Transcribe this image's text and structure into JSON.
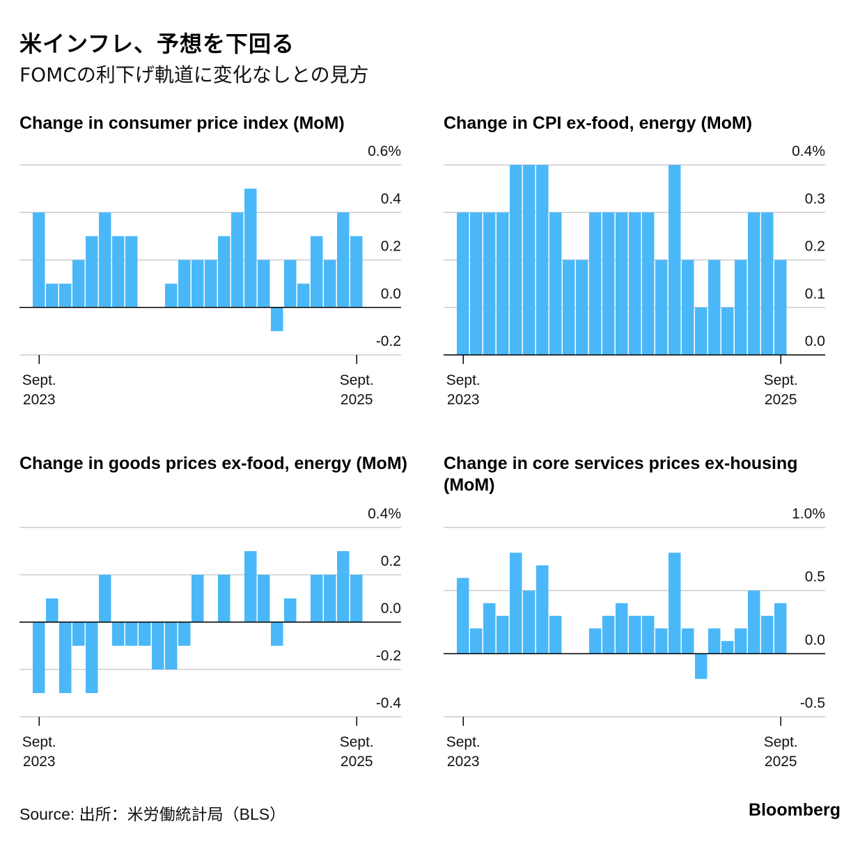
{
  "header": {
    "title": "米インフレ、予想を下回る",
    "subtitle": "FOMCの利下げ軌道に変化なしとの見方"
  },
  "footer": {
    "source": "Source: 出所：米労働統計局（BLS）",
    "brand": "Bloomberg"
  },
  "colors": {
    "bar": "#4ab8f8",
    "grid": "#cccccc",
    "baseline": "#000000"
  },
  "chart_data": [
    {
      "type": "bar",
      "title": "Change in consumer price index (MoM)",
      "yticks": [
        "0.6%",
        "0.4",
        "0.2",
        "0.0",
        "-0.2"
      ],
      "ytick_values": [
        0.6,
        0.4,
        0.2,
        0.0,
        -0.2
      ],
      "ylim": [
        -0.2,
        0.6
      ],
      "x_start_label": [
        "Sept.",
        "2023"
      ],
      "x_end_label": [
        "Sept.",
        "2025"
      ],
      "values": [
        0.4,
        0.1,
        0.1,
        0.2,
        0.3,
        0.4,
        0.3,
        0.3,
        null,
        0.0,
        0.1,
        0.2,
        0.2,
        0.2,
        0.3,
        0.4,
        0.5,
        0.2,
        -0.1,
        0.2,
        0.1,
        0.3,
        0.2,
        0.4,
        0.3
      ]
    },
    {
      "type": "bar",
      "title": "Change in CPI ex-food, energy (MoM)",
      "yticks": [
        "0.4%",
        "0.3",
        "0.2",
        "0.1",
        "0.0"
      ],
      "ytick_values": [
        0.4,
        0.3,
        0.2,
        0.1,
        0.0
      ],
      "ylim": [
        0.0,
        0.4
      ],
      "x_start_label": [
        "Sept.",
        "2023"
      ],
      "x_end_label": [
        "Sept.",
        "2025"
      ],
      "values": [
        0.3,
        0.3,
        0.3,
        0.3,
        0.4,
        0.4,
        0.4,
        0.3,
        0.2,
        0.2,
        0.3,
        0.3,
        0.3,
        0.3,
        0.3,
        0.2,
        0.4,
        0.2,
        0.1,
        0.2,
        0.1,
        0.2,
        0.3,
        0.3,
        0.2
      ]
    },
    {
      "type": "bar",
      "title": "Change in goods prices ex-food, energy (MoM)",
      "yticks": [
        "0.4%",
        "0.2",
        "0.0",
        "-0.2",
        "-0.4"
      ],
      "ytick_values": [
        0.4,
        0.2,
        0.0,
        -0.2,
        -0.4
      ],
      "ylim": [
        -0.4,
        0.4
      ],
      "x_start_label": [
        "Sept.",
        "2023"
      ],
      "x_end_label": [
        "Sept.",
        "2025"
      ],
      "values": [
        -0.3,
        0.1,
        -0.3,
        -0.1,
        -0.3,
        0.2,
        -0.1,
        -0.1,
        -0.1,
        -0.2,
        -0.2,
        -0.1,
        0.2,
        0.0,
        0.2,
        0.0,
        0.3,
        0.2,
        -0.1,
        0.1,
        0.0,
        0.2,
        0.2,
        0.3,
        0.2
      ]
    },
    {
      "type": "bar",
      "title": "Change in core services prices ex-housing (MoM)",
      "yticks": [
        "1.0%",
        "0.5",
        "0.0",
        "-0.5"
      ],
      "ytick_values": [
        1.0,
        0.5,
        0.0,
        -0.5
      ],
      "ylim": [
        -0.5,
        1.0
      ],
      "x_start_label": [
        "Sept.",
        "2023"
      ],
      "x_end_label": [
        "Sept.",
        "2025"
      ],
      "values": [
        0.6,
        0.2,
        0.4,
        0.3,
        0.8,
        0.5,
        0.7,
        0.3,
        null,
        0.0,
        0.2,
        0.3,
        0.4,
        0.3,
        0.3,
        0.2,
        0.8,
        0.2,
        -0.2,
        0.2,
        0.1,
        0.2,
        0.5,
        0.3,
        0.4
      ]
    }
  ]
}
